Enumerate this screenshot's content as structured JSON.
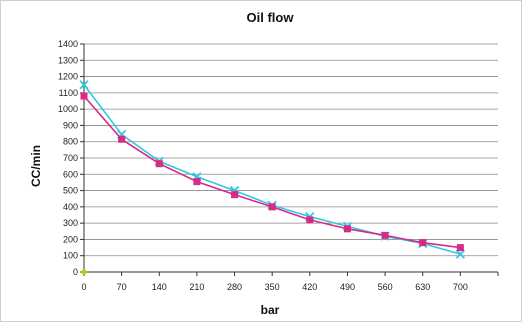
{
  "chart_data": {
    "type": "line",
    "title": "Oil flow",
    "xlabel": "bar",
    "ylabel": "CC/min",
    "x": [
      0,
      70,
      140,
      210,
      280,
      350,
      420,
      490,
      560,
      630,
      700
    ],
    "xlim": [
      0,
      770
    ],
    "ylim": [
      0,
      1400
    ],
    "y_ticks": [
      0,
      100,
      200,
      300,
      400,
      500,
      600,
      700,
      800,
      900,
      1000,
      1100,
      1200,
      1300,
      1400
    ],
    "grid": "horizontal",
    "legend": "none",
    "series": [
      {
        "color": "#33c8e0",
        "marker": "x",
        "values": [
          1150,
          845,
          680,
          585,
          500,
          410,
          340,
          280,
          220,
          175,
          110
        ]
      },
      {
        "color": "#d82a86",
        "marker": "square",
        "values": [
          1080,
          815,
          665,
          555,
          475,
          400,
          320,
          265,
          225,
          180,
          150
        ]
      }
    ],
    "origin_marker_color": "#c8c800"
  }
}
